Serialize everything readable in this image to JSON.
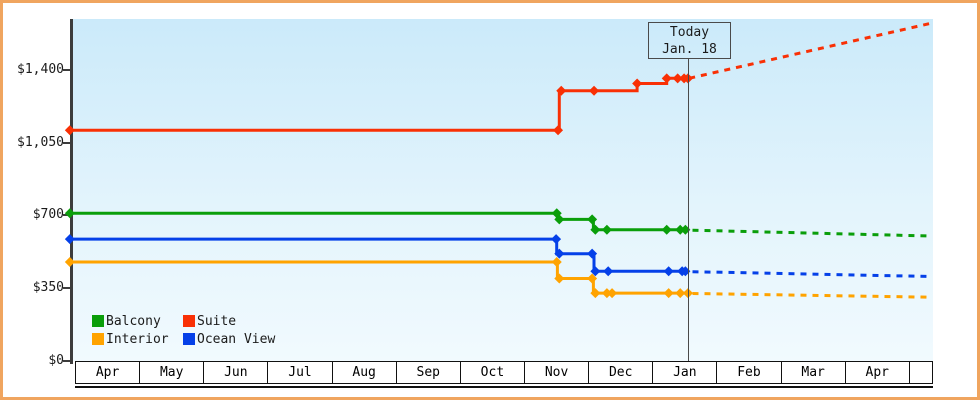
{
  "page": {
    "border_color": "#f0a55f",
    "plot_bg_top": "#cbeafa",
    "plot_bg_bottom": "#f1fafe",
    "axis_color": "#3c3c3c"
  },
  "chart": {
    "today_box": {
      "line1": "Today",
      "line2": "Jan. 18"
    },
    "legend": [
      {
        "label": "Balcony",
        "color": "#0a9e0a"
      },
      {
        "label": "Suite",
        "color": "#f93005"
      },
      {
        "label": "Interior",
        "color": "#ffa300"
      },
      {
        "label": "Ocean View",
        "color": "#0540e8"
      }
    ]
  },
  "chart_data": {
    "type": "line",
    "title": "",
    "xlabel": "",
    "ylabel": "",
    "description": "Cruise cabin price history by category; solid = past prices, dashed = projection after today (Jan. 18)",
    "x_unit": "months since Apr 1",
    "xlim": [
      0,
      13.34
    ],
    "ylim": [
      0,
      1646
    ],
    "grid": false,
    "legend_position": "bottom-left inside plot",
    "y_ticks": [
      {
        "value": 0,
        "label": "$0"
      },
      {
        "value": 350,
        "label": "$350"
      },
      {
        "value": 700,
        "label": "$700"
      },
      {
        "value": 1050,
        "label": "$1,050"
      },
      {
        "value": 1400,
        "label": "$1,400"
      }
    ],
    "x_month_labels": [
      "Apr",
      "May",
      "Jun",
      "Jul",
      "Aug",
      "Sep",
      "Oct",
      "Nov",
      "Dec",
      "Jan",
      "Feb",
      "Mar",
      "Apr"
    ],
    "today": {
      "x": 9.55,
      "label": "Today",
      "date": "Jan. 18"
    },
    "series": [
      {
        "name": "Suite",
        "color": "#f93005",
        "solid": [
          [
            -0.08,
            1110
          ],
          [
            7.53,
            1110
          ],
          [
            7.53,
            1300
          ],
          [
            8.74,
            1300
          ],
          [
            8.74,
            1335
          ],
          [
            9.2,
            1335
          ],
          [
            9.2,
            1360
          ],
          [
            9.55,
            1360
          ]
        ],
        "markers": [
          [
            -0.08,
            1110
          ],
          [
            7.51,
            1110
          ],
          [
            7.56,
            1300
          ],
          [
            8.07,
            1300
          ],
          [
            8.74,
            1335
          ],
          [
            9.2,
            1360
          ],
          [
            9.37,
            1360
          ],
          [
            9.47,
            1360
          ],
          [
            9.53,
            1360
          ]
        ],
        "dashed": [
          [
            9.55,
            1360
          ],
          [
            13.3,
            1625
          ]
        ]
      },
      {
        "name": "Balcony",
        "color": "#0a9e0a",
        "solid": [
          [
            -0.08,
            710
          ],
          [
            7.5,
            710
          ],
          [
            7.5,
            680
          ],
          [
            8.06,
            680
          ],
          [
            8.06,
            630
          ],
          [
            9.55,
            630
          ]
        ],
        "markers": [
          [
            -0.08,
            710
          ],
          [
            7.49,
            710
          ],
          [
            7.53,
            680
          ],
          [
            8.04,
            680
          ],
          [
            8.09,
            630
          ],
          [
            8.27,
            630
          ],
          [
            9.2,
            630
          ],
          [
            9.41,
            630
          ],
          [
            9.49,
            630
          ]
        ],
        "dashed": [
          [
            9.6,
            628
          ],
          [
            13.3,
            600
          ]
        ]
      },
      {
        "name": "Ocean View",
        "color": "#0540e8",
        "solid": [
          [
            -0.08,
            585
          ],
          [
            7.49,
            585
          ],
          [
            7.49,
            515
          ],
          [
            8.07,
            515
          ],
          [
            8.07,
            430
          ],
          [
            9.55,
            430
          ]
        ],
        "markers": [
          [
            -0.08,
            585
          ],
          [
            7.48,
            585
          ],
          [
            7.53,
            515
          ],
          [
            8.04,
            515
          ],
          [
            8.09,
            430
          ],
          [
            8.29,
            430
          ],
          [
            9.23,
            430
          ],
          [
            9.44,
            430
          ],
          [
            9.49,
            430
          ]
        ],
        "dashed": [
          [
            9.6,
            428
          ],
          [
            13.3,
            405
          ]
        ]
      },
      {
        "name": "Interior",
        "color": "#ffa300",
        "solid": [
          [
            -0.08,
            475
          ],
          [
            7.5,
            475
          ],
          [
            7.5,
            395
          ],
          [
            8.06,
            395
          ],
          [
            8.06,
            325
          ],
          [
            9.55,
            325
          ]
        ],
        "markers": [
          [
            -0.08,
            475
          ],
          [
            7.49,
            475
          ],
          [
            7.53,
            395
          ],
          [
            8.04,
            395
          ],
          [
            8.09,
            325
          ],
          [
            8.27,
            325
          ],
          [
            8.35,
            325
          ],
          [
            9.23,
            325
          ],
          [
            9.41,
            325
          ],
          [
            9.53,
            325
          ]
        ],
        "dashed": [
          [
            9.6,
            323
          ],
          [
            13.3,
            305
          ]
        ]
      }
    ]
  }
}
